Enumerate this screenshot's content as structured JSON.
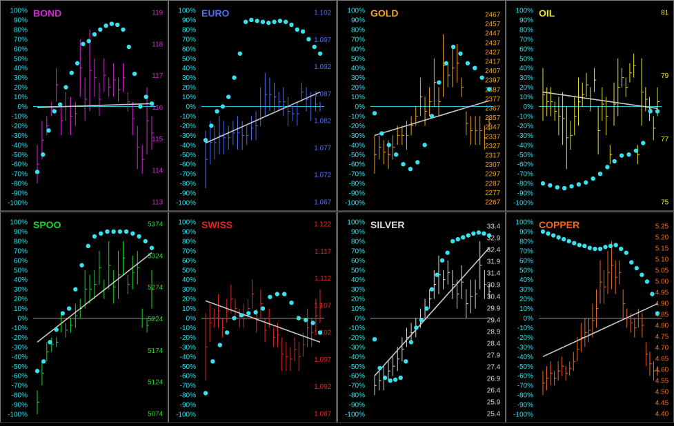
{
  "theme": {
    "background": "#000000",
    "border": "#7a7a7a",
    "pct_label_color": "#29e6f0",
    "zero_line_color": "#21c6d0",
    "dot_color": "#37e2ee",
    "trend_color": "#c8c8c8"
  },
  "pct_ticks": [
    "100%",
    "90%",
    "80%",
    "70%",
    "60%",
    "50%",
    "40%",
    "30%",
    "20%",
    "10%",
    "0%",
    "-10%",
    "-20%",
    "-30%",
    "-40%",
    "-50%",
    "-60%",
    "-70%",
    "-80%",
    "-90%",
    "-100%"
  ],
  "chart_data": [
    {
      "type": "bar",
      "title": "BOND",
      "color": "#d724d7",
      "price_ticks": [
        "119",
        "118",
        "117",
        "116",
        "115",
        "114",
        "113"
      ],
      "ylim": [
        -100,
        100
      ],
      "bars": [
        [
          -40,
          -80
        ],
        [
          -15,
          -55
        ],
        [
          -10,
          -30
        ],
        [
          5,
          -10
        ],
        [
          40,
          5
        ],
        [
          0,
          -30
        ],
        [
          15,
          -15
        ],
        [
          10,
          -30
        ],
        [
          5,
          -20
        ],
        [
          70,
          10
        ],
        [
          30,
          -15
        ],
        [
          80,
          -5
        ],
        [
          50,
          10
        ],
        [
          25,
          -10
        ],
        [
          50,
          15
        ],
        [
          30,
          10
        ],
        [
          45,
          10
        ],
        [
          30,
          5
        ],
        [
          45,
          15
        ],
        [
          15,
          -5
        ],
        [
          5,
          -30
        ],
        [
          -20,
          -65
        ],
        [
          -40,
          -70
        ],
        [
          20,
          -50
        ],
        [
          -10,
          -45
        ]
      ],
      "oscillator": [
        -68,
        -50,
        -25,
        -5,
        2,
        20,
        35,
        45,
        65,
        68,
        75,
        80,
        84,
        86,
        85,
        80,
        62,
        34,
        0,
        10,
        3
      ],
      "trend": [
        -1,
        3
      ]
    },
    {
      "type": "bar",
      "title": "EURO",
      "color": "#4d6ef2",
      "price_ticks": [
        "1.102",
        "1.097",
        "1.092",
        "1.087",
        "1.082",
        "1.077",
        "1.072",
        "1.067"
      ],
      "ylim": [
        -100,
        100
      ],
      "bars": [
        [
          -25,
          -85
        ],
        [
          -15,
          -60
        ],
        [
          -20,
          -55
        ],
        [
          -10,
          -50
        ],
        [
          -15,
          -50
        ],
        [
          -20,
          -45
        ],
        [
          -15,
          -40
        ],
        [
          -10,
          -45
        ],
        [
          -15,
          -45
        ],
        [
          -20,
          -40
        ],
        [
          -10,
          -35
        ],
        [
          -5,
          -35
        ],
        [
          20,
          -20
        ],
        [
          35,
          -10
        ],
        [
          30,
          -5
        ],
        [
          25,
          -5
        ],
        [
          15,
          -5
        ],
        [
          20,
          -10
        ],
        [
          10,
          -20
        ],
        [
          0,
          -15
        ],
        [
          5,
          -20
        ],
        [
          25,
          5
        ],
        [
          20,
          -5
        ],
        [
          15,
          -15
        ],
        [
          10,
          -5
        ],
        [
          5,
          -5
        ]
      ],
      "oscillator": [
        -35,
        -20,
        -5,
        0,
        10,
        30,
        55,
        88,
        90,
        89,
        88,
        87,
        88,
        89,
        88,
        85,
        80,
        78,
        70,
        62,
        55
      ],
      "trend": [
        -38,
        15
      ]
    },
    {
      "type": "bar",
      "title": "GOLD",
      "color": "#f2a524",
      "price_ticks": [
        "2467",
        "2457",
        "2447",
        "2437",
        "2427",
        "2417",
        "2407",
        "2397",
        "2387",
        "2377",
        "2367",
        "2357",
        "2347",
        "2337",
        "2327",
        "2317",
        "2307",
        "2297",
        "2287",
        "2277",
        "2267"
      ],
      "ylim": [
        -100,
        100
      ],
      "bars": [
        [
          -30,
          -70
        ],
        [
          -30,
          -55
        ],
        [
          -35,
          -60
        ],
        [
          -35,
          -65
        ],
        [
          -30,
          -55
        ],
        [
          -20,
          -40
        ],
        [
          -20,
          -40
        ],
        [
          -15,
          -45
        ],
        [
          -10,
          -30
        ],
        [
          0,
          -20
        ],
        [
          30,
          -10
        ],
        [
          10,
          -20
        ],
        [
          20,
          -10
        ],
        [
          50,
          0
        ],
        [
          20,
          -10
        ],
        [
          75,
          10
        ],
        [
          45,
          20
        ],
        [
          60,
          20
        ],
        [
          65,
          25
        ],
        [
          30,
          10
        ],
        [
          -5,
          -30
        ],
        [
          -10,
          -40
        ],
        [
          -10,
          -40
        ],
        [
          -10,
          -40
        ],
        [
          -20,
          -45
        ],
        [
          -10,
          -25
        ]
      ],
      "oscillator": [
        -7,
        -28,
        -40,
        -50,
        -60,
        -65,
        -58,
        -40,
        -10,
        25,
        45,
        62,
        55,
        45,
        40,
        30,
        18
      ],
      "trend": [
        -30,
        6
      ]
    },
    {
      "type": "bar",
      "title": "OIL",
      "color": "#eae42a",
      "price_ticks": [
        "81",
        "79",
        "77",
        "75"
      ],
      "ylim": [
        -100,
        100
      ],
      "bars": [
        [
          40,
          -15
        ],
        [
          20,
          -10
        ],
        [
          20,
          -10
        ],
        [
          5,
          -15
        ],
        [
          10,
          -30
        ],
        [
          15,
          -40
        ],
        [
          0,
          -65
        ],
        [
          -15,
          -45
        ],
        [
          10,
          -30
        ],
        [
          30,
          -20
        ],
        [
          25,
          0
        ],
        [
          35,
          10
        ],
        [
          20,
          -5
        ],
        [
          40,
          15
        ],
        [
          0,
          -50
        ],
        [
          20,
          -15
        ],
        [
          10,
          -30
        ],
        [
          -40,
          -60
        ],
        [
          25,
          -20
        ],
        [
          50,
          -10
        ],
        [
          40,
          20
        ],
        [
          30,
          10
        ],
        [
          45,
          25
        ],
        [
          55,
          30
        ],
        [
          -40,
          -60
        ],
        [
          50,
          -20
        ],
        [
          20,
          -5
        ],
        [
          10,
          -15
        ],
        [
          -10,
          -35
        ],
        [
          20,
          -10
        ]
      ],
      "oscillator": [
        -80,
        -82,
        -84,
        -85,
        -83,
        -81,
        -79,
        -75,
        -70,
        -63,
        -57,
        -51,
        -50,
        -46,
        -38,
        -5,
        -5
      ],
      "trend": [
        15,
        -2
      ]
    },
    {
      "type": "bar",
      "title": "SPOO",
      "color": "#1fd52c",
      "price_ticks": [
        "5374",
        "5324",
        "5274",
        "5224",
        "5174",
        "5124",
        "5074"
      ],
      "ylim": [
        -100,
        100
      ],
      "bars": [
        [
          -75,
          -100
        ],
        [
          -45,
          -70
        ],
        [
          -25,
          -45
        ],
        [
          -20,
          -35
        ],
        [
          -20,
          -30
        ],
        [
          5,
          -15
        ],
        [
          -5,
          -20
        ],
        [
          0,
          -15
        ],
        [
          15,
          -10
        ],
        [
          20,
          0
        ],
        [
          50,
          10
        ],
        [
          45,
          15
        ],
        [
          50,
          20
        ],
        [
          70,
          35
        ],
        [
          40,
          20
        ],
        [
          80,
          30
        ],
        [
          50,
          15
        ],
        [
          70,
          20
        ],
        [
          80,
          45
        ],
        [
          45,
          25
        ],
        [
          65,
          30
        ],
        [
          70,
          35
        ],
        [
          10,
          -10
        ],
        [
          0,
          -15
        ],
        [
          50,
          10
        ]
      ],
      "oscillator": [
        -55,
        -45,
        -25,
        -12,
        5,
        10,
        30,
        55,
        75,
        85,
        88,
        90,
        90,
        90,
        90,
        88,
        85,
        80,
        73
      ],
      "trend": [
        -25,
        68
      ]
    },
    {
      "type": "bar",
      "title": "SWISS",
      "color": "#e22525",
      "price_ticks": [
        "1.122",
        "1.117",
        "1.112",
        "1.107",
        "1.102",
        "1.097",
        "1.092",
        "1.087"
      ],
      "ylim": [
        -100,
        100
      ],
      "bars": [
        [
          5,
          -65
        ],
        [
          15,
          -25
        ],
        [
          10,
          -10
        ],
        [
          25,
          -10
        ],
        [
          0,
          -20
        ],
        [
          20,
          -5
        ],
        [
          35,
          5
        ],
        [
          20,
          0
        ],
        [
          10,
          -10
        ],
        [
          15,
          -10
        ],
        [
          20,
          0
        ],
        [
          40,
          10
        ],
        [
          10,
          -15
        ],
        [
          30,
          0
        ],
        [
          0,
          -25
        ],
        [
          10,
          -10
        ],
        [
          -10,
          -30
        ],
        [
          -5,
          -30
        ],
        [
          -20,
          -55
        ],
        [
          -25,
          -55
        ],
        [
          -30,
          -55
        ],
        [
          -20,
          -45
        ],
        [
          -25,
          -55
        ],
        [
          -15,
          -40
        ],
        [
          10,
          -30
        ],
        [
          0,
          -30
        ],
        [
          20,
          -15
        ],
        [
          30,
          -5
        ]
      ],
      "oscillator": [
        -78,
        -45,
        -28,
        -15,
        0,
        3,
        5,
        6,
        10,
        22,
        25,
        25,
        16,
        0,
        -2,
        -5,
        -15
      ],
      "trend": [
        18,
        -25
      ]
    },
    {
      "type": "bar",
      "title": "SILVER",
      "color": "#dcdcdc",
      "price_ticks": [
        "33.4",
        "32.9",
        "32.4",
        "31.9",
        "31.4",
        "30.9",
        "30.4",
        "29.9",
        "29.4",
        "28.9",
        "28.4",
        "27.9",
        "27.4",
        "26.9",
        "26.4",
        "25.9",
        "25.4"
      ],
      "ylim": [
        -100,
        100
      ],
      "bars": [
        [
          -60,
          -80
        ],
        [
          -55,
          -75
        ],
        [
          -50,
          -75
        ],
        [
          -45,
          -65
        ],
        [
          -40,
          -60
        ],
        [
          -30,
          -55
        ],
        [
          -20,
          -45
        ],
        [
          -10,
          -30
        ],
        [
          -5,
          -25
        ],
        [
          0,
          -20
        ],
        [
          10,
          -10
        ],
        [
          20,
          0
        ],
        [
          30,
          10
        ],
        [
          50,
          20
        ],
        [
          65,
          25
        ],
        [
          50,
          30
        ],
        [
          60,
          35
        ],
        [
          50,
          20
        ],
        [
          40,
          10
        ],
        [
          55,
          20
        ],
        [
          30,
          0
        ],
        [
          40,
          5
        ],
        [
          40,
          10
        ],
        [
          80,
          30
        ],
        [
          50,
          20
        ],
        [
          35,
          20
        ]
      ],
      "oscillator": [
        -22,
        -52,
        -62,
        -65,
        -64,
        -62,
        -45,
        -25,
        -10,
        -2,
        10,
        30,
        45,
        60,
        68,
        80,
        82,
        84,
        86,
        88,
        89,
        88,
        86
      ],
      "trend": [
        -60,
        73
      ]
    },
    {
      "type": "bar",
      "title": "COPPER",
      "color": "#ef6a1c",
      "price_ticks": [
        "5.25",
        "5.20",
        "5.15",
        "5.10",
        "5.05",
        "5.00",
        "4.95",
        "4.90",
        "4.85",
        "4.80",
        "4.75",
        "4.70",
        "4.65",
        "4.60",
        "4.55",
        "4.50",
        "4.45",
        "4.40"
      ],
      "ylim": [
        -100,
        100
      ],
      "bars": [
        [
          -55,
          -80
        ],
        [
          -50,
          -75
        ],
        [
          -45,
          -70
        ],
        [
          -55,
          -70
        ],
        [
          -45,
          -65
        ],
        [
          -40,
          -60
        ],
        [
          -50,
          -65
        ],
        [
          -45,
          -60
        ],
        [
          -35,
          -55
        ],
        [
          -20,
          -45
        ],
        [
          -5,
          -35
        ],
        [
          0,
          -30
        ],
        [
          0,
          -25
        ],
        [
          15,
          -20
        ],
        [
          30,
          -10
        ],
        [
          60,
          15
        ],
        [
          50,
          15
        ],
        [
          70,
          25
        ],
        [
          80,
          30
        ],
        [
          60,
          25
        ],
        [
          60,
          35
        ],
        [
          30,
          0
        ],
        [
          10,
          -10
        ],
        [
          5,
          -15
        ],
        [
          0,
          -20
        ],
        [
          10,
          -10
        ],
        [
          5,
          -20
        ],
        [
          -25,
          -50
        ],
        [
          -35,
          -60
        ],
        [
          -45,
          -65
        ],
        [
          -50,
          -60
        ]
      ],
      "oscillator": [
        90,
        88,
        86,
        84,
        82,
        80,
        78,
        76,
        75,
        73,
        72,
        72,
        74,
        75,
        76,
        72,
        68,
        58,
        52,
        45,
        38,
        25,
        5
      ],
      "trend": [
        -40,
        15
      ]
    }
  ]
}
